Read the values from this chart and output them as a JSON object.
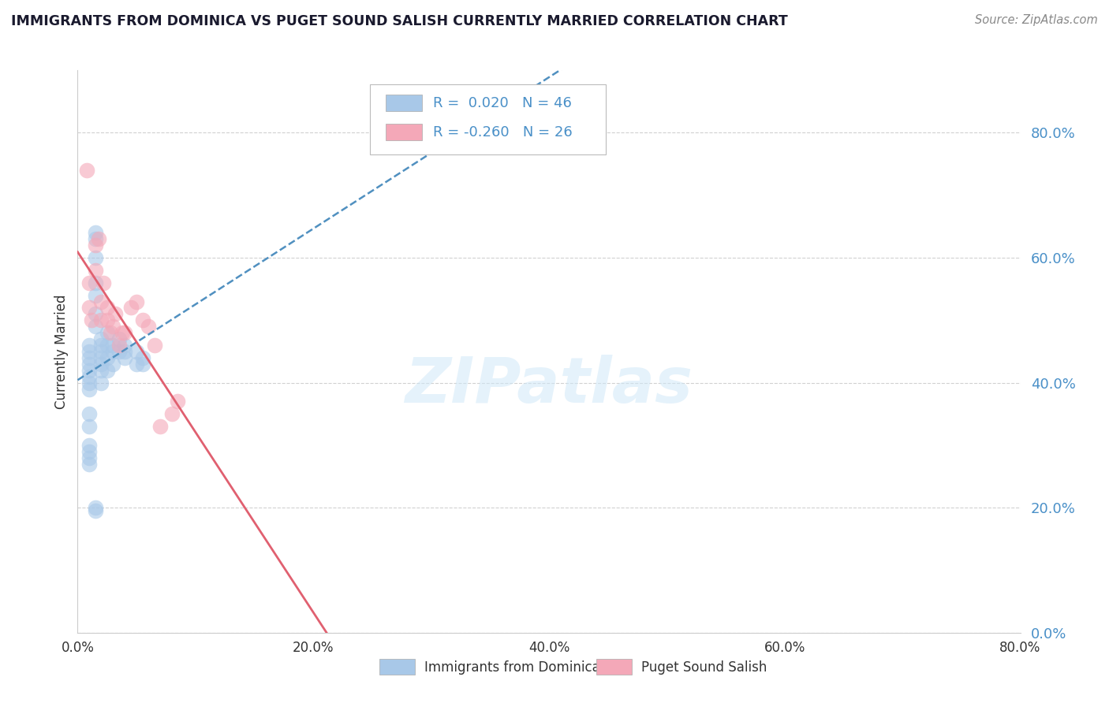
{
  "title": "IMMIGRANTS FROM DOMINICA VS PUGET SOUND SALISH CURRENTLY MARRIED CORRELATION CHART",
  "source_text": "Source: ZipAtlas.com",
  "ylabel": "Currently Married",
  "xlim": [
    0.0,
    0.8
  ],
  "ylim": [
    0.0,
    0.9
  ],
  "yticks": [
    0.0,
    0.2,
    0.4,
    0.6,
    0.8
  ],
  "xticks": [
    0.0,
    0.2,
    0.4,
    0.6,
    0.8
  ],
  "blue_R": 0.02,
  "blue_N": 46,
  "pink_R": -0.26,
  "pink_N": 26,
  "blue_label": "Immigrants from Dominica",
  "pink_label": "Puget Sound Salish",
  "blue_color": "#a8c8e8",
  "pink_color": "#f4a8b8",
  "blue_line_color": "#5090c0",
  "pink_line_color": "#e06070",
  "tick_color": "#4a90c8",
  "title_color": "#1a1a2e",
  "source_color": "#888888",
  "watermark_color": "#d0e8f8",
  "blue_x": [
    0.01,
    0.01,
    0.01,
    0.01,
    0.01,
    0.01,
    0.01,
    0.01,
    0.015,
    0.015,
    0.015,
    0.015,
    0.015,
    0.015,
    0.015,
    0.02,
    0.02,
    0.02,
    0.02,
    0.02,
    0.02,
    0.025,
    0.025,
    0.025,
    0.025,
    0.03,
    0.03,
    0.03,
    0.035,
    0.035,
    0.04,
    0.04,
    0.04,
    0.05,
    0.055,
    0.01,
    0.01,
    0.01,
    0.01,
    0.01,
    0.01,
    0.015,
    0.015,
    0.02,
    0.05,
    0.055
  ],
  "blue_y": [
    0.43,
    0.44,
    0.45,
    0.46,
    0.42,
    0.41,
    0.4,
    0.39,
    0.63,
    0.64,
    0.6,
    0.56,
    0.54,
    0.51,
    0.49,
    0.47,
    0.46,
    0.45,
    0.43,
    0.42,
    0.4,
    0.48,
    0.46,
    0.44,
    0.42,
    0.45,
    0.43,
    0.46,
    0.47,
    0.45,
    0.44,
    0.45,
    0.46,
    0.43,
    0.43,
    0.35,
    0.33,
    0.3,
    0.29,
    0.28,
    0.27,
    0.2,
    0.195,
    0.44,
    0.45,
    0.44
  ],
  "pink_x": [
    0.008,
    0.01,
    0.01,
    0.012,
    0.015,
    0.015,
    0.018,
    0.02,
    0.02,
    0.022,
    0.025,
    0.025,
    0.028,
    0.03,
    0.032,
    0.035,
    0.038,
    0.04,
    0.045,
    0.05,
    0.055,
    0.06,
    0.065,
    0.08,
    0.085,
    0.07
  ],
  "pink_y": [
    0.74,
    0.52,
    0.56,
    0.5,
    0.62,
    0.58,
    0.63,
    0.53,
    0.5,
    0.56,
    0.5,
    0.52,
    0.48,
    0.49,
    0.51,
    0.46,
    0.48,
    0.48,
    0.52,
    0.53,
    0.5,
    0.49,
    0.46,
    0.35,
    0.37,
    0.33
  ]
}
